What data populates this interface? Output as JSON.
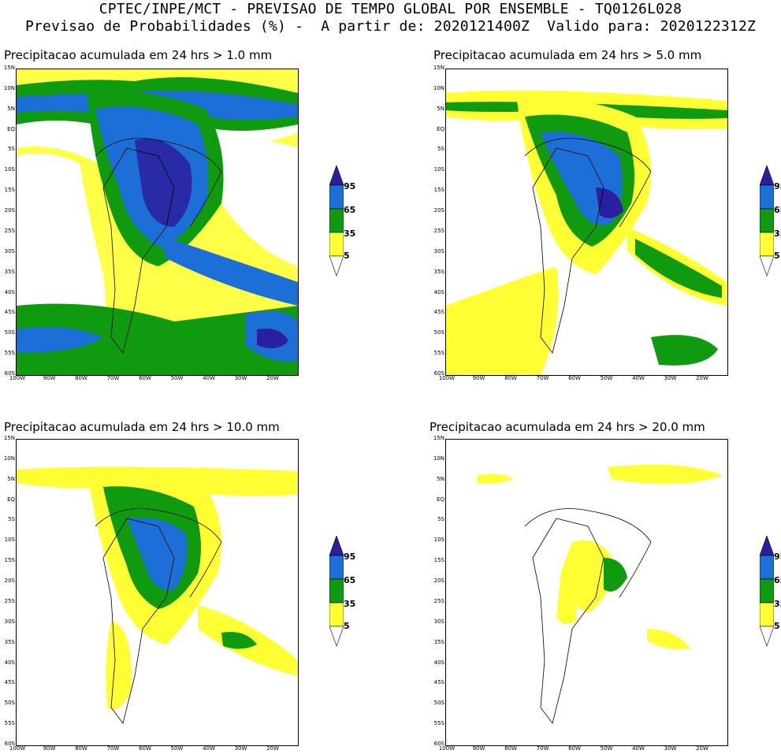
{
  "header": {
    "line1": "CPTEC/INPE/MCT - PREVISAO DE TEMPO GLOBAL POR ENSEMBLE - TQ0126L028",
    "line2": "Previsao de Probabilidades (%) -  A partir de: 2020121400Z  Valido para: 2020122312Z"
  },
  "axes": {
    "lat_labels": [
      "15N",
      "10N",
      "5N",
      "EQ",
      "5S",
      "10S",
      "15S",
      "20S",
      "25S",
      "30S",
      "35S",
      "40S",
      "45S",
      "50S",
      "55S",
      "60S"
    ],
    "lon_labels": [
      "100W",
      "90W",
      "80W",
      "70W",
      "60W",
      "50W",
      "40W",
      "30W",
      "20W"
    ]
  },
  "legend": {
    "levels": [
      "95",
      "65",
      "35",
      "5"
    ],
    "colors": {
      "c95": "#2a1f9e",
      "c65": "#1c6fd6",
      "c35": "#0f9a0f",
      "c5": "#ffff33"
    }
  },
  "panels": [
    {
      "title": "Precipitacao acumulada em 24 hrs > 1.0 mm"
    },
    {
      "title": "Precipitacao acumulada em 24 hrs > 5.0 mm"
    },
    {
      "title": "Precipitacao acumulada em 24 hrs > 10.0 mm"
    },
    {
      "title": "Precipitacao acumulada em 24 hrs > 20.0 mm"
    }
  ]
}
